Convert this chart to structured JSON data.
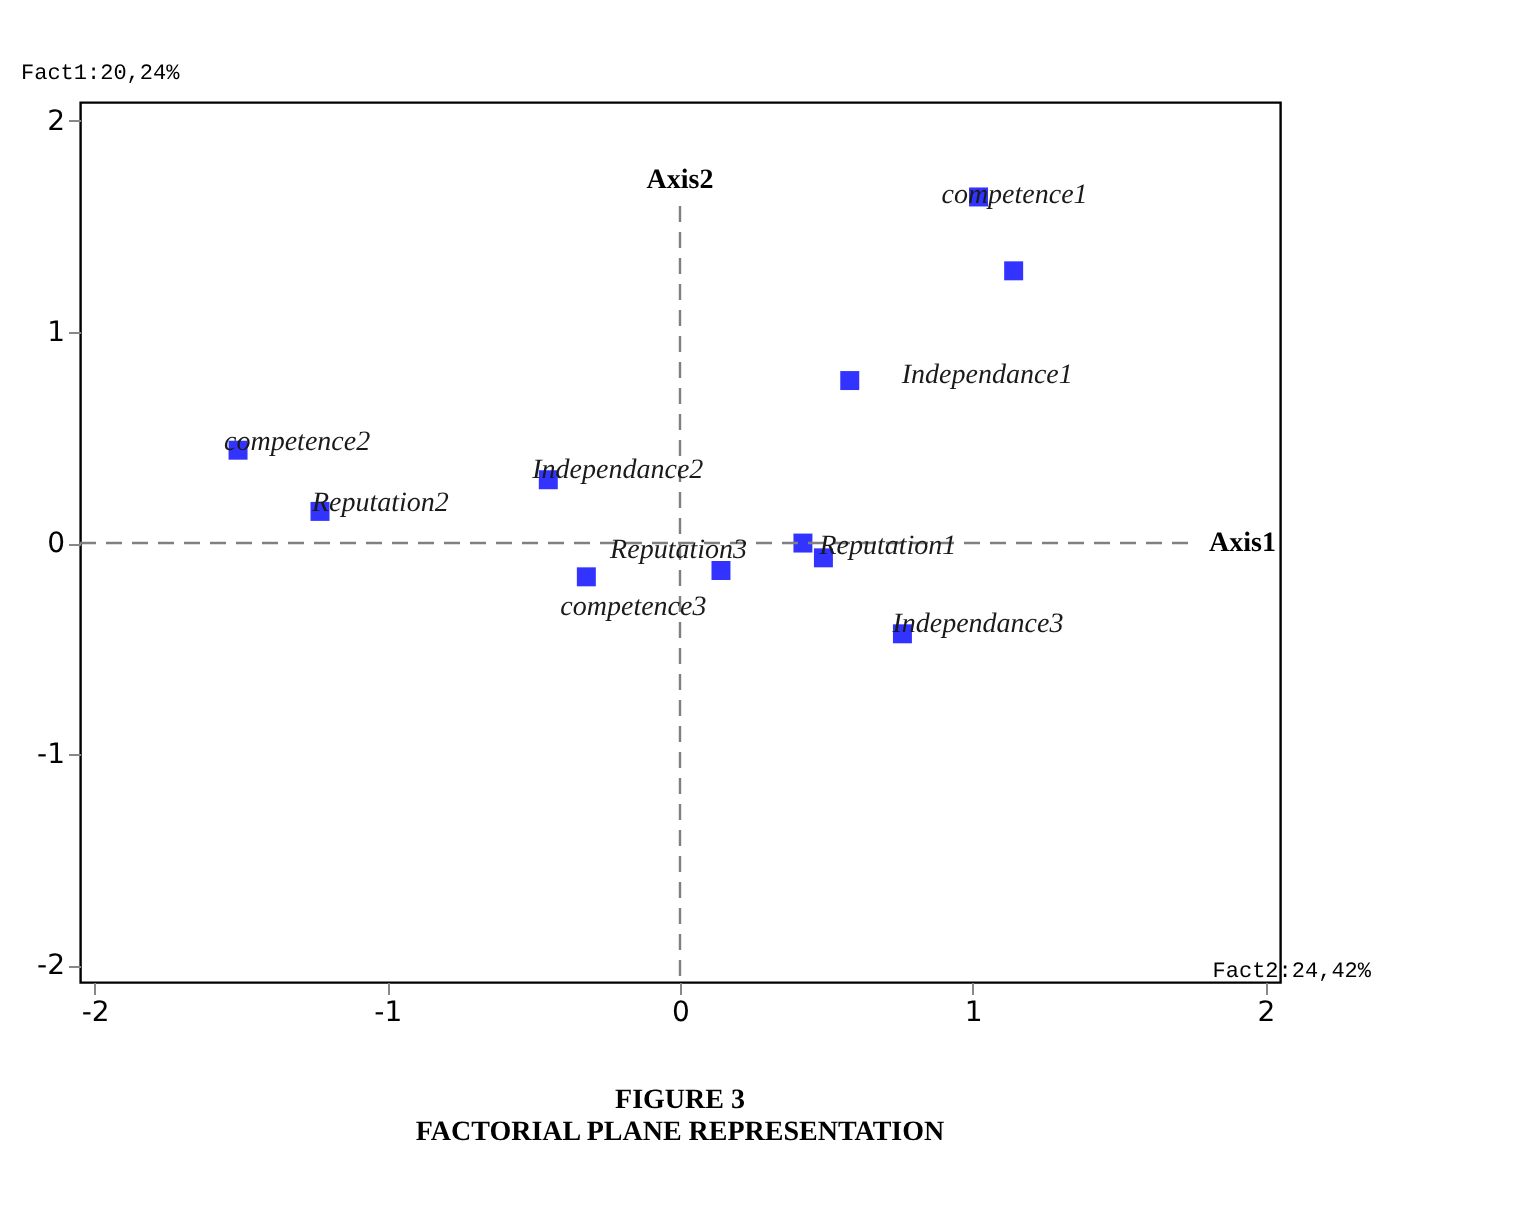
{
  "chart_data": {
    "type": "scatter",
    "title": "FIGURE 3",
    "subtitle": "FACTORIAL PLANE REPRESENTATION",
    "xlabel": "Fact2:24,42%",
    "ylabel": "Fact1:20,24%",
    "x": [
      1.02,
      1.14,
      0.58,
      -1.51,
      -1.23,
      -0.45,
      -0.32,
      0.14,
      0.42,
      0.49,
      0.76
    ],
    "series": [
      {
        "color": "#3333ff",
        "values": [
          1.64,
          1.29,
          0.77,
          0.44,
          0.15,
          0.3,
          -0.16,
          -0.13,
          0.0,
          -0.07,
          -0.43
        ],
        "value_labels": [
          "competence1",
          null,
          "Independance1",
          "competence2",
          "Reputation2",
          "Independance2",
          "competence3",
          "Reputation3",
          null,
          "Reputation1",
          "Independance3"
        ]
      }
    ],
    "marker": "square",
    "xlim": [
      -2.05,
      2.05
    ],
    "ylim": [
      -2.08,
      2.09
    ],
    "xticks": [
      -2,
      -1,
      0,
      1,
      2
    ],
    "yticks": [
      -2,
      -1,
      0,
      1,
      2
    ],
    "grid": false,
    "ref_lines": [
      {
        "axis": "x",
        "value": 0,
        "label": "Axis2",
        "color": "#808080",
        "line_style": "dashed"
      },
      {
        "axis": "y",
        "value": 0,
        "label": "Axis1",
        "color": "#808080",
        "line_style": "dashed"
      }
    ]
  }
}
